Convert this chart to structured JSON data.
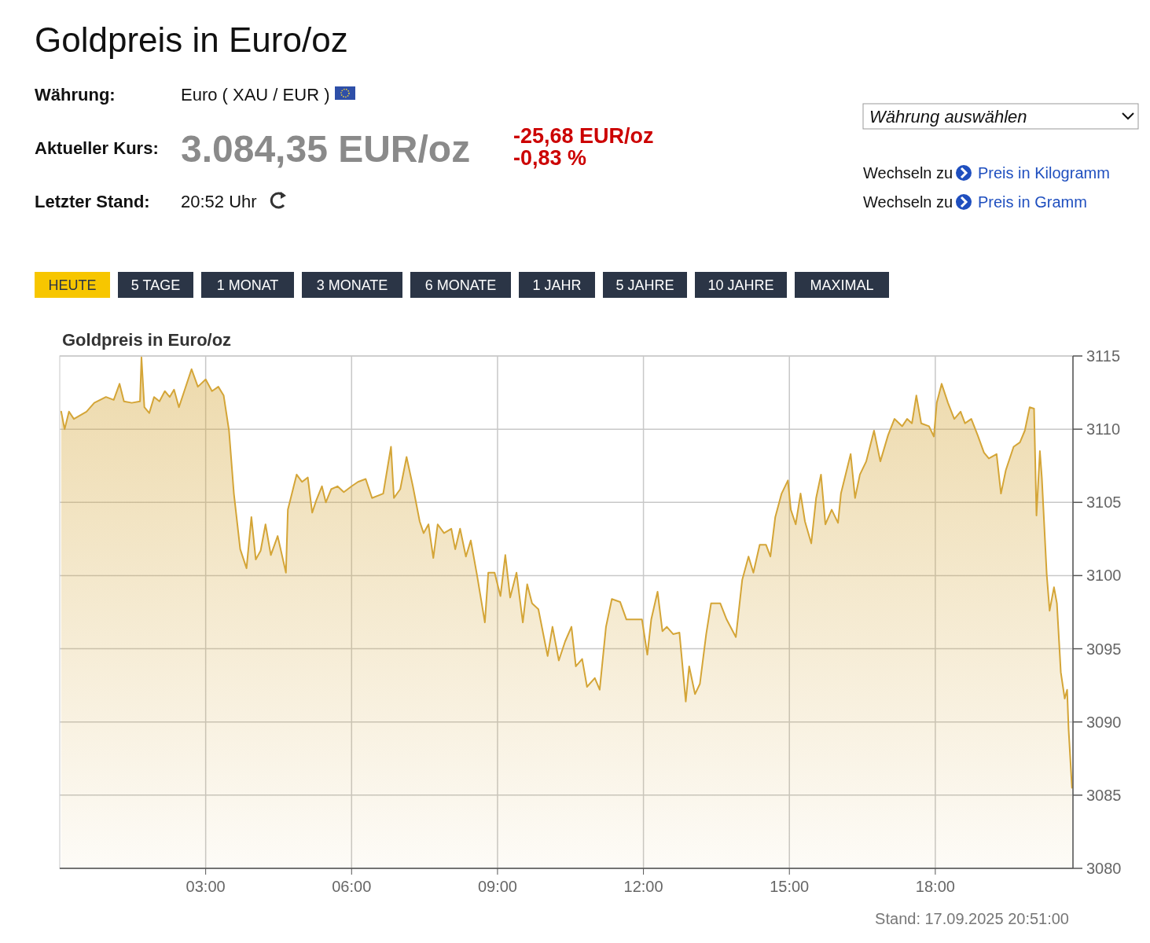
{
  "chart_data": {
    "type": "area",
    "title": "Goldpreis in Euro/oz",
    "subtitle": "Goldpreis in Euro/oz",
    "annotations": [
      "Währung:",
      "Euro ( XAU / EUR )",
      "Aktueller Kurs:",
      "3.084,35 EUR/oz",
      "-25,68 EUR/oz",
      "-0,83 %",
      "Letzter Stand:",
      "20:52 Uhr",
      "Währung auswählen",
      "Wechseln zu",
      "Preis in Kilogramm",
      "Wechseln zu",
      "Preis in Gramm",
      "HEUTE",
      "5 TAGE",
      "1 MONAT",
      "3 MONATE",
      "6 MONATE",
      "1 JAHR",
      "5 JAHRE",
      "10 JAHRE",
      "MAXIMAL",
      "Stand: 17.09.2025 20:51:00"
    ],
    "x": [
      0.03,
      0.1,
      0.19,
      0.29,
      0.55,
      0.71,
      0.95,
      1.11,
      1.23,
      1.32,
      1.48,
      1.65,
      1.68,
      1.74,
      1.84,
      1.94,
      2.05,
      2.16,
      2.26,
      2.35,
      2.45,
      2.56,
      2.71,
      2.84,
      3.0,
      3.13,
      3.26,
      3.37,
      3.48,
      3.58,
      3.71,
      3.84,
      3.94,
      4.03,
      4.13,
      4.23,
      4.34,
      4.48,
      4.65,
      4.69,
      4.87,
      4.98,
      5.1,
      5.19,
      5.27,
      5.39,
      5.47,
      5.58,
      5.71,
      5.84,
      6.0,
      6.13,
      6.29,
      6.42,
      6.65,
      6.81,
      6.87,
      7.0,
      7.13,
      7.26,
      7.4,
      7.48,
      7.58,
      7.68,
      7.77,
      7.9,
      8.05,
      8.13,
      8.23,
      8.35,
      8.45,
      8.58,
      8.74,
      8.81,
      8.94,
      9.06,
      9.16,
      9.26,
      9.39,
      9.52,
      9.61,
      9.71,
      9.84,
      10.03,
      10.13,
      10.26,
      10.39,
      10.52,
      10.61,
      10.74,
      10.84,
      11.0,
      11.1,
      11.23,
      11.35,
      11.52,
      11.65,
      11.84,
      11.97,
      12.08,
      12.16,
      12.29,
      12.39,
      12.48,
      12.61,
      12.74,
      12.87,
      12.94,
      13.06,
      13.16,
      13.29,
      13.39,
      13.58,
      13.71,
      13.9,
      14.03,
      14.16,
      14.26,
      14.39,
      14.52,
      14.61,
      14.71,
      14.84,
      14.97,
      15.03,
      15.13,
      15.23,
      15.32,
      15.45,
      15.55,
      15.65,
      15.74,
      15.87,
      16.0,
      16.06,
      16.26,
      16.35,
      16.45,
      16.58,
      16.74,
      16.87,
      17.03,
      17.16,
      17.32,
      17.42,
      17.52,
      17.61,
      17.71,
      17.87,
      17.97,
      18.03,
      18.13,
      18.26,
      18.39,
      18.52,
      18.61,
      18.74,
      18.87,
      19.0,
      19.1,
      19.26,
      19.35,
      19.45,
      19.61,
      19.74,
      19.84,
      19.94,
      20.03,
      20.08,
      20.15,
      20.19,
      20.29,
      20.35,
      20.44,
      20.5,
      20.58,
      20.66,
      20.71,
      20.74,
      20.81
    ],
    "series": [
      {
        "color": "#d4a537",
        "values": [
          3111.2,
          3110.0,
          3111.2,
          3110.7,
          3111.2,
          3111.8,
          3112.2,
          3112.0,
          3113.1,
          3111.9,
          3111.8,
          3111.9,
          3114.9,
          3111.5,
          3111.1,
          3112.2,
          3111.9,
          3112.6,
          3112.2,
          3112.7,
          3111.5,
          3112.6,
          3114.1,
          3112.9,
          3113.4,
          3112.6,
          3112.9,
          3112.3,
          3109.9,
          3105.6,
          3101.8,
          3100.5,
          3104.0,
          3101.1,
          3101.7,
          3103.5,
          3101.4,
          3102.7,
          3100.2,
          3104.5,
          3106.9,
          3106.4,
          3106.7,
          3104.3,
          3105.1,
          3106.1,
          3105.0,
          3105.9,
          3106.1,
          3105.7,
          3106.1,
          3106.4,
          3106.6,
          3105.3,
          3105.6,
          3108.8,
          3105.3,
          3105.9,
          3108.1,
          3106.1,
          3103.7,
          3102.9,
          3103.5,
          3101.2,
          3103.5,
          3102.9,
          3103.2,
          3101.8,
          3103.2,
          3101.3,
          3102.4,
          3100.0,
          3096.8,
          3100.2,
          3100.2,
          3098.6,
          3101.4,
          3098.5,
          3100.2,
          3096.8,
          3099.4,
          3098.1,
          3097.7,
          3094.5,
          3096.5,
          3094.2,
          3095.5,
          3096.5,
          3093.8,
          3094.3,
          3092.4,
          3093.0,
          3092.2,
          3096.5,
          3098.4,
          3098.2,
          3097.0,
          3097.0,
          3097.0,
          3094.6,
          3097.0,
          3098.9,
          3096.2,
          3096.5,
          3096.0,
          3096.1,
          3091.4,
          3093.8,
          3091.9,
          3092.6,
          3096.0,
          3098.1,
          3098.1,
          3097.0,
          3095.8,
          3099.7,
          3101.3,
          3100.2,
          3102.1,
          3102.1,
          3101.3,
          3104.0,
          3105.6,
          3106.5,
          3104.5,
          3103.5,
          3105.6,
          3103.7,
          3102.2,
          3105.3,
          3106.9,
          3103.5,
          3104.5,
          3103.6,
          3105.6,
          3108.3,
          3105.3,
          3106.9,
          3107.8,
          3109.9,
          3107.8,
          3109.6,
          3110.7,
          3110.2,
          3110.7,
          3110.4,
          3112.3,
          3110.4,
          3110.2,
          3109.5,
          3111.8,
          3113.1,
          3111.8,
          3110.7,
          3111.2,
          3110.4,
          3110.7,
          3109.6,
          3108.4,
          3108.0,
          3108.3,
          3105.6,
          3107.2,
          3108.8,
          3109.1,
          3109.9,
          3111.5,
          3111.4,
          3104.1,
          3108.5,
          3106.7,
          3100.1,
          3097.6,
          3099.2,
          3098.1,
          3093.4,
          3091.6,
          3092.2,
          3089.5,
          3085.5
        ]
      }
    ],
    "xlim": [
      0,
      20.83
    ],
    "xticks": [
      {
        "value": 3,
        "label": "03:00"
      },
      {
        "value": 6,
        "label": "06:00"
      },
      {
        "value": 9,
        "label": "09:00"
      },
      {
        "value": 12,
        "label": "12:00"
      },
      {
        "value": 15,
        "label": "15:00"
      },
      {
        "value": 18,
        "label": "18:00"
      }
    ],
    "ylim": [
      3080,
      3115
    ],
    "yticks": [
      3080,
      3085,
      3090,
      3095,
      3100,
      3105,
      3110,
      3115
    ],
    "grid": true
  }
}
